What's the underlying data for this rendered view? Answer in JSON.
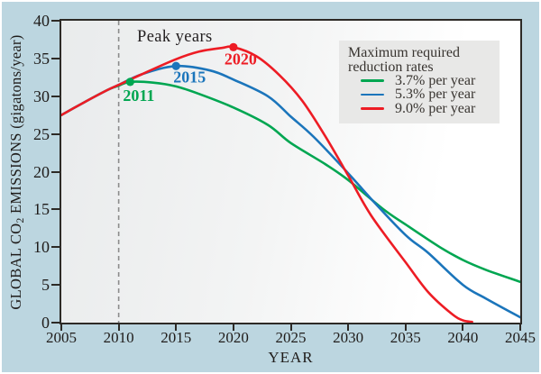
{
  "figure": {
    "background_color": "#bcd6e0",
    "axis_color": "#2d2a26",
    "legend_background": "#e8e8e7",
    "dashed_line_color": "#8c8c8c"
  },
  "chart_data": {
    "type": "line",
    "title": "",
    "xlabel": "YEAR",
    "ylabel": "GLOBAL CO2 EMISSIONS (gigatons/year)",
    "ylabel_parts": {
      "pre": "GLOBAL CO",
      "sub": "2",
      "post": " EMISSIONS (gigatons/year)"
    },
    "xlim": [
      2005,
      2045
    ],
    "ylim": [
      0,
      40
    ],
    "x_ticks": [
      2005,
      2010,
      2015,
      2020,
      2025,
      2030,
      2035,
      2040,
      2045
    ],
    "y_ticks": [
      0,
      5,
      10,
      15,
      20,
      25,
      30,
      35,
      40
    ],
    "grid": false,
    "annotations": {
      "peak_years_label": "Peak years",
      "dashed_vertical_line_x": 2010
    },
    "legend": {
      "position": "top-right",
      "title_line1": "Maximum required",
      "title_line2": "reduction rates",
      "items": [
        {
          "label": "3.7% per year",
          "color": "#00a651"
        },
        {
          "label": "5.3% per year",
          "color": "#1b75bb"
        },
        {
          "label": "9.0% per year",
          "color": "#ed1c24"
        }
      ]
    },
    "series": [
      {
        "name": "3.7% per year",
        "color": "#00a651",
        "peak": {
          "year": 2011,
          "value": 31.9,
          "label": "2011"
        },
        "points": [
          [
            2005,
            27.5
          ],
          [
            2007,
            29.2
          ],
          [
            2009,
            30.8
          ],
          [
            2010,
            31.4
          ],
          [
            2011,
            31.9
          ],
          [
            2013,
            31.8
          ],
          [
            2015,
            31.3
          ],
          [
            2017,
            30.3
          ],
          [
            2020,
            28.5
          ],
          [
            2023,
            26.2
          ],
          [
            2025,
            23.8
          ],
          [
            2028,
            21.0
          ],
          [
            2030,
            18.9
          ],
          [
            2033,
            15.1
          ],
          [
            2035,
            13.0
          ],
          [
            2038,
            10.0
          ],
          [
            2040,
            8.3
          ],
          [
            2042,
            7.0
          ],
          [
            2045,
            5.4
          ]
        ]
      },
      {
        "name": "5.3% per year",
        "color": "#1b75bb",
        "peak": {
          "year": 2015,
          "value": 34.0,
          "label": "2015"
        },
        "points": [
          [
            2005,
            27.5
          ],
          [
            2007,
            29.2
          ],
          [
            2009,
            30.8
          ],
          [
            2010,
            31.5
          ],
          [
            2012,
            32.9
          ],
          [
            2015,
            34.0
          ],
          [
            2018,
            33.4
          ],
          [
            2020,
            32.2
          ],
          [
            2023,
            30.0
          ],
          [
            2025,
            27.3
          ],
          [
            2027,
            24.6
          ],
          [
            2030,
            19.8
          ],
          [
            2032,
            16.4
          ],
          [
            2035,
            11.6
          ],
          [
            2037,
            9.2
          ],
          [
            2040,
            5.0
          ],
          [
            2042,
            3.2
          ],
          [
            2045,
            0.7
          ]
        ]
      },
      {
        "name": "9.0% per year",
        "color": "#ed1c24",
        "peak": {
          "year": 2020,
          "value": 36.5,
          "label": "2020"
        },
        "points": [
          [
            2005,
            27.5
          ],
          [
            2007,
            29.2
          ],
          [
            2009,
            30.8
          ],
          [
            2010,
            31.5
          ],
          [
            2012,
            32.9
          ],
          [
            2015,
            34.9
          ],
          [
            2017,
            35.9
          ],
          [
            2019,
            36.4
          ],
          [
            2020,
            36.5
          ],
          [
            2022,
            35.3
          ],
          [
            2024,
            32.8
          ],
          [
            2026,
            29.4
          ],
          [
            2028,
            24.7
          ],
          [
            2030,
            19.5
          ],
          [
            2032,
            14.2
          ],
          [
            2035,
            8.0
          ],
          [
            2037,
            4.0
          ],
          [
            2039,
            1.2
          ],
          [
            2040,
            0.3
          ],
          [
            2040.8,
            0.1
          ]
        ]
      }
    ]
  }
}
